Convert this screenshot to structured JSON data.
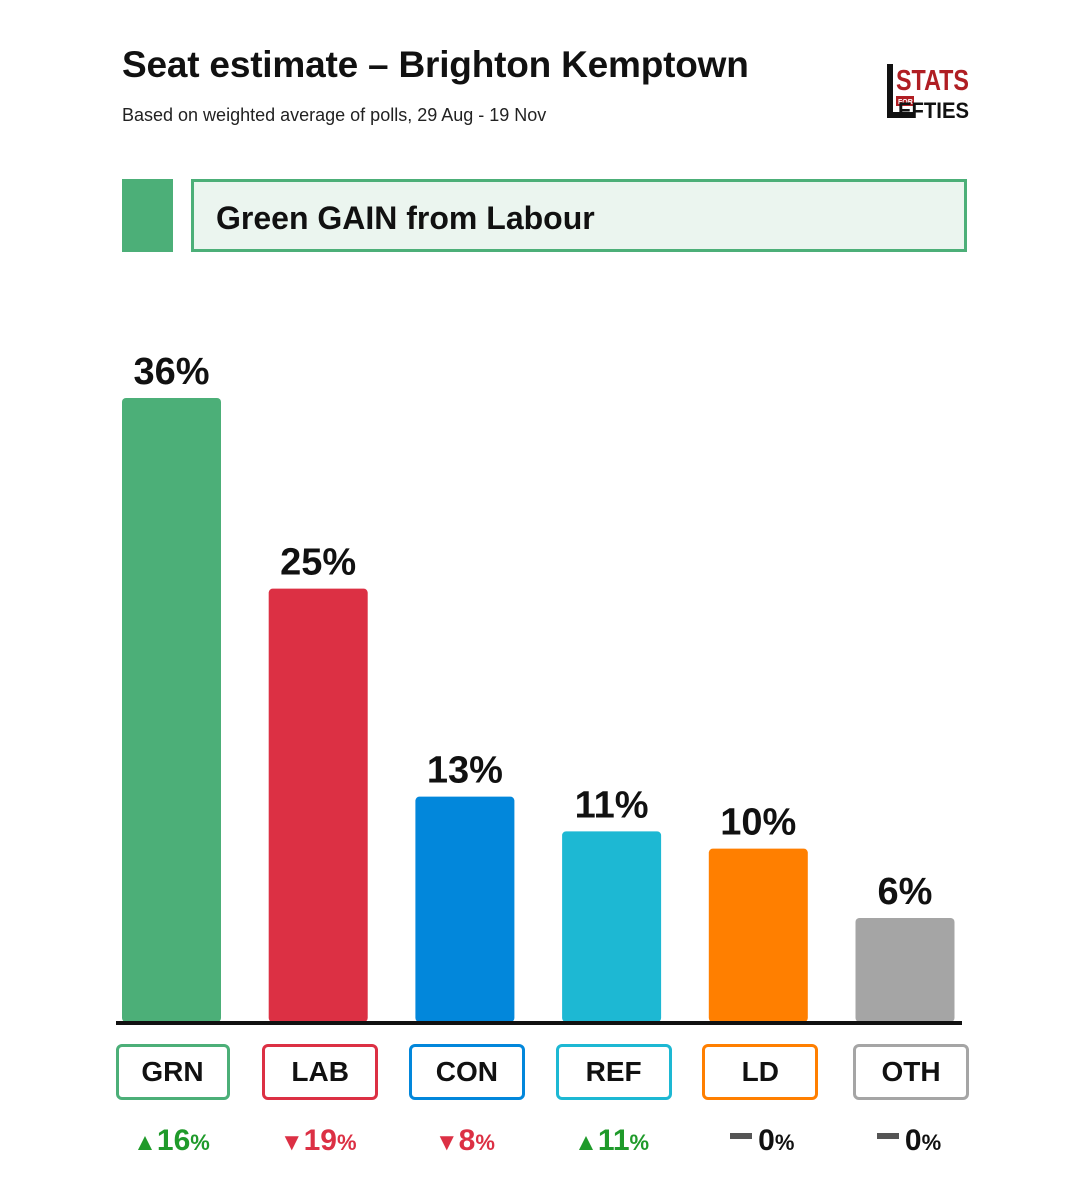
{
  "header": {
    "title": "Seat estimate – Brighton Kemptown",
    "subtitle": "Based on weighted average of polls, 29 Aug - 19 Nov",
    "logo_text_top": "STATS",
    "logo_text_small": "FOR",
    "logo_text_bottom": "EFTIES"
  },
  "banner": {
    "text": "Green GAIN from Labour",
    "color": "#4caf78",
    "background": "#ebf5ef"
  },
  "chart_data": {
    "type": "bar",
    "categories": [
      "GRN",
      "LAB",
      "CON",
      "REF",
      "LD",
      "OTH"
    ],
    "values": [
      36,
      25,
      13,
      11,
      10,
      6
    ],
    "value_labels": [
      "36%",
      "25%",
      "13%",
      "11%",
      "10%",
      "6%"
    ],
    "colors": [
      "#4caf78",
      "#dc3044",
      "#0287db",
      "#1db8d3",
      "#ff7f00",
      "#a5a5a5"
    ],
    "ylim": [
      0,
      36
    ],
    "changes": [
      {
        "direction": "up",
        "symbol": "▲",
        "value": "16",
        "unit": "%",
        "color": "#1f9a2a"
      },
      {
        "direction": "down",
        "symbol": "▼",
        "value": "19",
        "unit": "%",
        "color": "#dc3044"
      },
      {
        "direction": "down",
        "symbol": "▼",
        "value": "8",
        "unit": "%",
        "color": "#dc3044"
      },
      {
        "direction": "up",
        "symbol": "▲",
        "value": "11",
        "unit": "%",
        "color": "#1f9a2a"
      },
      {
        "direction": "none",
        "symbol": "",
        "value": "0",
        "unit": "%",
        "color": "#111111"
      },
      {
        "direction": "none",
        "symbol": "",
        "value": "0",
        "unit": "%",
        "color": "#111111"
      }
    ]
  }
}
